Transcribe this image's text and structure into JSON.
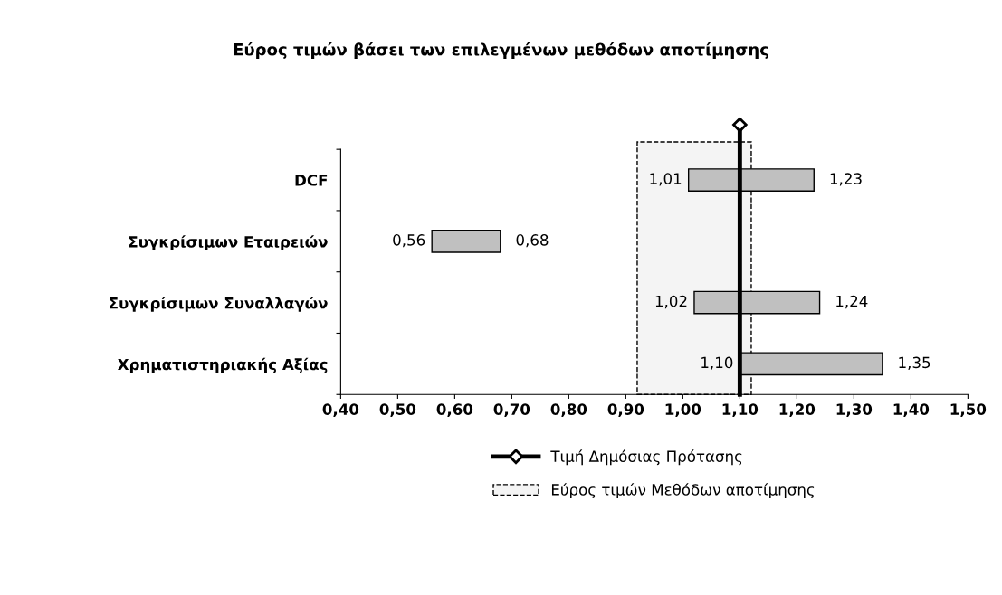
{
  "chart_data": {
    "type": "bar",
    "orientation": "horizontal",
    "title": "Εύρος τιμών βάσει των επιλεγμένων μεθόδων αποτίμησης",
    "categories": [
      "DCF",
      "Συγκρίσιμων Εταιρειών",
      "Συγκρίσιμων Συναλλαγών",
      "Χρηματιστηριακής Αξίας"
    ],
    "base": [
      1.01,
      0.56,
      1.02,
      1.1
    ],
    "values": [
      0.22,
      0.12,
      0.22,
      0.25
    ],
    "color": "#c0c0c0",
    "xlim": [
      0.4,
      1.5
    ],
    "xticks": [
      {
        "value": 0.4,
        "label": "0,40"
      },
      {
        "value": 0.5,
        "label": "0,50"
      },
      {
        "value": 0.6,
        "label": "0,60"
      },
      {
        "value": 0.7,
        "label": "0,70"
      },
      {
        "value": 0.8,
        "label": "0,80"
      },
      {
        "value": 0.9,
        "label": "0,90"
      },
      {
        "value": 1.0,
        "label": "1,00"
      },
      {
        "value": 1.1,
        "label": "1,10"
      },
      {
        "value": 1.2,
        "label": "1,20"
      },
      {
        "value": 1.3,
        "label": "1,30"
      },
      {
        "value": 1.4,
        "label": "1,40"
      },
      {
        "value": 1.5,
        "label": "1,50"
      }
    ],
    "annotations": [
      {
        "text": "1,01",
        "x": 1.01,
        "y": "DCF"
      },
      {
        "text": "1,23",
        "x": 1.23,
        "y": "DCF"
      },
      {
        "text": "0,56",
        "x": 0.56,
        "y": "Συγκρίσιμων Εταιρειών"
      },
      {
        "text": "0,68",
        "x": 0.68,
        "y": "Συγκρίσιμων Εταιρειών"
      },
      {
        "text": "1,02",
        "x": 1.02,
        "y": "Συγκρίσιμων Συναλλαγών"
      },
      {
        "text": "1,24",
        "x": 1.24,
        "y": "Συγκρίσιμων Συναλλαγών"
      },
      {
        "text": "1,10",
        "x": 1.1,
        "y": "Χρηματιστηριακής Αξίας"
      },
      {
        "text": "1,35",
        "x": 1.35,
        "y": "Χρηματιστηριακής Αξίας"
      }
    ],
    "ref_lines": [
      {
        "axis": "x",
        "value": 1.1,
        "label": "Τιμή Δημόσιας Πρότασης",
        "color": "#000000",
        "line_style": "solid"
      }
    ],
    "bands": [
      {
        "axis": "x",
        "from": 0.92,
        "to": 1.12,
        "label": "Εύρος τιμών Μεθόδων αποτίμησης",
        "color": "#000000"
      }
    ],
    "grid": false,
    "legend": "bottom"
  }
}
